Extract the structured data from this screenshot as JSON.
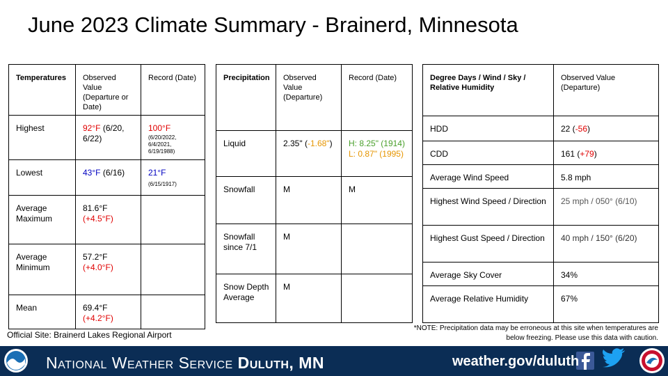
{
  "title": "June 2023 Climate Summary - Brainerd, Minnesota",
  "tables": [
    {
      "header": [
        "Temperatures",
        "Observed Value (Departure or Date)",
        "Record (Date)"
      ],
      "rows": [
        [
          [
            [
              {
                "text": "Highest"
              }
            ]
          ],
          [
            [
              {
                "text": "92°F",
                "color": "#e00000"
              },
              {
                "text": " (6/20, 6/22)"
              }
            ]
          ],
          [
            [
              {
                "text": "100°F",
                "color": "#e00000"
              }
            ],
            [
              {
                "text": "(6/20/2022, 6/4/2021, 6/19/1988)",
                "small": true
              }
            ]
          ]
        ],
        [
          [
            [
              {
                "text": "Lowest"
              }
            ]
          ],
          [
            [
              {
                "text": "43°F",
                "color": "#0000c0"
              },
              {
                "text": " (6/16)"
              }
            ]
          ],
          [
            [
              {
                "text": "21°F",
                "color": "#0000c0"
              }
            ],
            [
              {
                "text": "(6/15/1917)",
                "small": true
              }
            ]
          ]
        ],
        [
          [
            [
              {
                "text": "Average"
              }
            ],
            [
              {
                "text": "Maximum"
              }
            ]
          ],
          [
            [
              {
                "text": "81.6°F"
              }
            ],
            [
              {
                "text": "(+4.5°F)",
                "color": "#e00000"
              }
            ]
          ],
          []
        ],
        [
          [
            [
              {
                "text": "Average"
              }
            ],
            [
              {
                "text": "Minimum"
              }
            ]
          ],
          [
            [
              {
                "text": "57.2°F"
              }
            ],
            [
              {
                "text": "(+4.0°F)",
                "color": "#e00000"
              }
            ]
          ],
          []
        ],
        [
          [
            [
              {
                "text": "Mean"
              }
            ]
          ],
          [
            [
              {
                "text": "69.4°F"
              }
            ],
            [
              {
                "text": "(+4.2°F)",
                "color": "#e00000"
              }
            ]
          ],
          []
        ]
      ]
    },
    {
      "header": [
        "Precipitation",
        "Observed Value (Departure)",
        "Record (Date)"
      ],
      "rows": [
        [
          [
            [
              {
                "text": "Liquid"
              }
            ]
          ],
          [
            [
              {
                "text": "2.35\" ("
              },
              {
                "text": "-1.68\"",
                "color": "#e69500"
              },
              {
                "text": ")"
              }
            ]
          ],
          [
            [
              {
                "text": "H: 8.25\" (1914)",
                "color": "#4aa02c"
              }
            ],
            [
              {
                "text": "L: 0.87\" (1995)",
                "color": "#e69500"
              }
            ]
          ]
        ],
        [
          [
            [
              {
                "text": "Snowfall"
              }
            ]
          ],
          [
            [
              {
                "text": "M"
              }
            ]
          ],
          [
            [
              {
                "text": "M"
              }
            ]
          ]
        ],
        [
          [
            [
              {
                "text": "Snowfall"
              }
            ],
            [
              {
                "text": "since 7/1"
              }
            ]
          ],
          [
            [
              {
                "text": "M"
              }
            ]
          ],
          []
        ],
        [
          [
            [
              {
                "text": "Snow Depth"
              }
            ],
            [
              {
                "text": "Average"
              }
            ]
          ],
          [
            [
              {
                "text": "M"
              }
            ]
          ],
          []
        ]
      ]
    },
    {
      "header": [
        "Degree Days / Wind / Sky / Relative Humidity",
        "Observed Value (Departure)"
      ],
      "rows": [
        [
          [
            [
              {
                "text": "HDD"
              }
            ]
          ],
          [
            [
              {
                "text": "22 ("
              },
              {
                "text": "-56",
                "color": "#e00000"
              },
              {
                "text": ")"
              }
            ]
          ]
        ],
        [
          [
            [
              {
                "text": "CDD"
              }
            ]
          ],
          [
            [
              {
                "text": "161 ("
              },
              {
                "text": "+79",
                "color": "#e00000"
              },
              {
                "text": ")"
              }
            ]
          ]
        ],
        [
          [
            [
              {
                "text": "Average Wind Speed"
              }
            ]
          ],
          [
            [
              {
                "text": "5.8 mph"
              }
            ]
          ]
        ],
        [
          [
            [
              {
                "text": "Highest Wind Speed / Direction"
              }
            ]
          ],
          [
            [
              {
                "text": "25 mph / 050° (6/10)",
                "color": "#555555"
              }
            ]
          ]
        ],
        [
          [
            [
              {
                "text": "Highest Gust Speed / Direction"
              }
            ]
          ],
          [
            [
              {
                "text": "40 mph / 150° (6/20)",
                "color": "#333333"
              }
            ]
          ]
        ],
        [
          [
            [
              {
                "text": "Average Sky Cover"
              }
            ]
          ],
          [
            [
              {
                "text": "34%"
              }
            ]
          ]
        ],
        [
          [
            [
              {
                "text": "Average Relative Humidity"
              }
            ]
          ],
          [
            [
              {
                "text": "67%"
              }
            ]
          ]
        ]
      ]
    }
  ],
  "site": "Official Site: Brainerd Lakes Regional Airport",
  "note": "*NOTE:  Precipitation data may be erroneous at this site when temperatures are below freezing. Please use this data with caution.",
  "banner": {
    "agency": "National Weather Service",
    "office": "Duluth, MN",
    "website": "weather.gov/duluth"
  }
}
